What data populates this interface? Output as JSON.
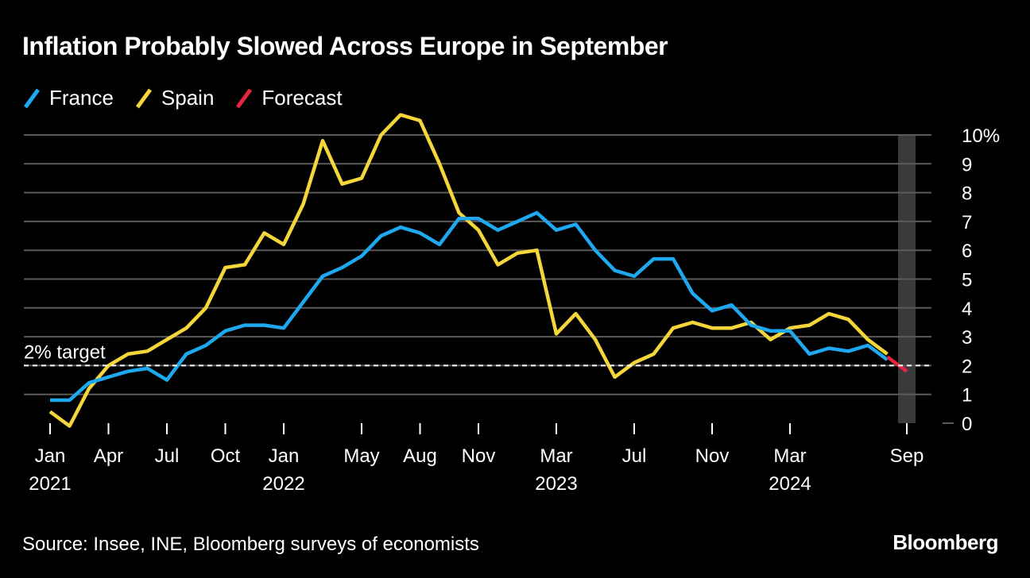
{
  "title": "Inflation Probably Slowed Across Europe in September",
  "source": "Source: Insee, INE, Bloomberg surveys of economists",
  "brand": "Bloomberg",
  "colors": {
    "background": "#000000",
    "france": "#1ea8f0",
    "spain": "#f5d63a",
    "forecast": "#e8243c",
    "grid": "#5a5a5a",
    "text": "#ffffff",
    "highlight_band": "#3a3a3a"
  },
  "legend": [
    {
      "label": "France",
      "color": "#1ea8f0"
    },
    {
      "label": "Spain",
      "color": "#f5d63a"
    },
    {
      "label": "Forecast",
      "color": "#e8243c"
    }
  ],
  "chart_data": {
    "type": "line",
    "x": [
      "2021-01",
      "2021-02",
      "2021-03",
      "2021-04",
      "2021-05",
      "2021-06",
      "2021-07",
      "2021-08",
      "2021-09",
      "2021-10",
      "2021-11",
      "2021-12",
      "2022-01",
      "2022-02",
      "2022-03",
      "2022-04",
      "2022-05",
      "2022-06",
      "2022-07",
      "2022-08",
      "2022-09",
      "2022-10",
      "2022-11",
      "2022-12",
      "2023-01",
      "2023-02",
      "2023-03",
      "2023-04",
      "2023-05",
      "2023-06",
      "2023-07",
      "2023-08",
      "2023-09",
      "2023-10",
      "2023-11",
      "2023-12",
      "2024-01",
      "2024-02",
      "2024-03",
      "2024-04",
      "2024-05",
      "2024-06",
      "2024-07",
      "2024-08",
      "2024-09"
    ],
    "series": [
      {
        "name": "France",
        "color": "#1ea8f0",
        "values": [
          0.8,
          0.8,
          1.4,
          1.6,
          1.8,
          1.9,
          1.5,
          2.4,
          2.7,
          3.2,
          3.4,
          3.4,
          3.3,
          4.2,
          5.1,
          5.4,
          5.8,
          6.5,
          6.8,
          6.6,
          6.2,
          7.1,
          7.1,
          6.7,
          7.0,
          7.3,
          6.7,
          6.9,
          6.0,
          5.3,
          5.1,
          5.7,
          5.7,
          4.5,
          3.9,
          4.1,
          3.4,
          3.2,
          3.2,
          2.4,
          2.6,
          2.5,
          2.7,
          2.2,
          null
        ]
      },
      {
        "name": "Spain",
        "color": "#f5d63a",
        "values": [
          0.4,
          -0.1,
          1.2,
          2.0,
          2.4,
          2.5,
          2.9,
          3.3,
          4.0,
          5.4,
          5.5,
          6.6,
          6.2,
          7.6,
          9.8,
          8.3,
          8.5,
          10.0,
          10.7,
          10.5,
          9.0,
          7.3,
          6.7,
          5.5,
          5.9,
          6.0,
          3.1,
          3.8,
          2.9,
          1.6,
          2.1,
          2.4,
          3.3,
          3.5,
          3.3,
          3.3,
          3.5,
          2.9,
          3.3,
          3.4,
          3.8,
          3.6,
          2.9,
          2.4,
          null
        ]
      },
      {
        "name": "Forecast",
        "color": "#e8243c",
        "values": [
          null,
          null,
          null,
          null,
          null,
          null,
          null,
          null,
          null,
          null,
          null,
          null,
          null,
          null,
          null,
          null,
          null,
          null,
          null,
          null,
          null,
          null,
          null,
          null,
          null,
          null,
          null,
          null,
          null,
          null,
          null,
          null,
          null,
          null,
          null,
          null,
          null,
          null,
          null,
          null,
          null,
          null,
          null,
          2.3,
          1.8
        ]
      }
    ],
    "x_tick_labels": [
      {
        "x": "2021-01",
        "month": "Jan",
        "year": "2021"
      },
      {
        "x": "2021-04",
        "month": "Apr",
        "year": ""
      },
      {
        "x": "2021-07",
        "month": "Jul",
        "year": ""
      },
      {
        "x": "2021-10",
        "month": "Oct",
        "year": ""
      },
      {
        "x": "2022-01",
        "month": "Jan",
        "year": "2022"
      },
      {
        "x": "2022-05",
        "month": "May",
        "year": ""
      },
      {
        "x": "2022-08",
        "month": "Aug",
        "year": ""
      },
      {
        "x": "2022-11",
        "month": "Nov",
        "year": ""
      },
      {
        "x": "2023-03",
        "month": "Mar",
        "year": "2023"
      },
      {
        "x": "2023-07",
        "month": "Jul",
        "year": ""
      },
      {
        "x": "2023-11",
        "month": "Nov",
        "year": ""
      },
      {
        "x": "2024-03",
        "month": "Mar",
        "year": "2024"
      },
      {
        "x": "2024-09",
        "month": "Sep",
        "year": ""
      }
    ],
    "y_ticks": [
      0,
      1,
      2,
      3,
      4,
      5,
      6,
      7,
      8,
      9,
      10
    ],
    "y_tick_labels": [
      "0",
      "1",
      "2",
      "3",
      "4",
      "5",
      "6",
      "7",
      "8",
      "9",
      "10%"
    ],
    "ylim": [
      0,
      10
    ],
    "y_axis_position": "right",
    "grid": true,
    "legend_position": "top-left",
    "reference_line": {
      "value": 2,
      "label": "2% target",
      "style": "dashed"
    },
    "highlight_band": {
      "x": "2024-09"
    }
  }
}
